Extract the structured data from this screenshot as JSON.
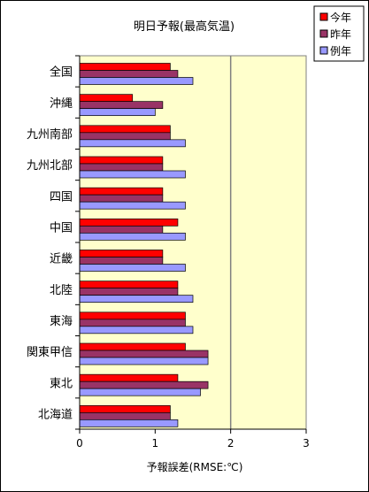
{
  "chart_data": {
    "type": "bar",
    "orientation": "horizontal",
    "title": "明日予報(最高気温)",
    "xlabel": "予報誤差(RMSE:℃)",
    "ylabel": "",
    "xlim": [
      0,
      3
    ],
    "xticks": [
      "0",
      "1",
      "2",
      "3"
    ],
    "grid": "vertical line at 2",
    "legend_position": "top-right",
    "plot_background": "#ffffcc",
    "categories": [
      "全国",
      "沖縄",
      "九州南部",
      "九州北部",
      "四国",
      "中国",
      "近畿",
      "北陸",
      "東海",
      "関東甲信",
      "東北",
      "北海道"
    ],
    "series": [
      {
        "name": "今年",
        "color": "#ff0000",
        "values": [
          1.2,
          0.7,
          1.2,
          1.1,
          1.1,
          1.3,
          1.1,
          1.3,
          1.4,
          1.4,
          1.3,
          1.2
        ]
      },
      {
        "name": "昨年",
        "color": "#993366",
        "values": [
          1.3,
          1.1,
          1.2,
          1.1,
          1.1,
          1.1,
          1.1,
          1.3,
          1.4,
          1.7,
          1.7,
          1.2
        ]
      },
      {
        "name": "例年",
        "color": "#9999ff",
        "values": [
          1.5,
          1.0,
          1.4,
          1.4,
          1.4,
          1.4,
          1.4,
          1.5,
          1.5,
          1.7,
          1.6,
          1.3
        ]
      }
    ]
  }
}
